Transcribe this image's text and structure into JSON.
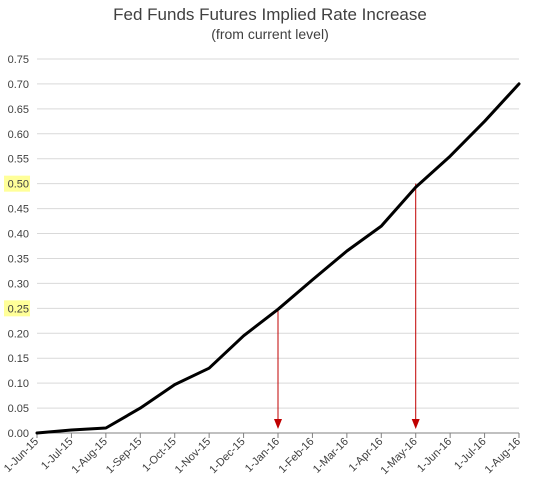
{
  "chart_data": {
    "type": "line",
    "title": "Fed Funds Futures Implied Rate Increase",
    "subtitle": "(from current level)",
    "xlabel": "",
    "ylabel": "",
    "ylim": [
      0,
      0.75
    ],
    "yticks": [
      "0.00",
      "0.05",
      "0.10",
      "0.15",
      "0.20",
      "0.25",
      "0.30",
      "0.35",
      "0.40",
      "0.45",
      "0.50",
      "0.55",
      "0.60",
      "0.65",
      "0.70",
      "0.75"
    ],
    "categories": [
      "1-Jun-15",
      "1-Jul-15",
      "1-Aug-15",
      "1-Sep-15",
      "1-Oct-15",
      "1-Nov-15",
      "1-Dec-15",
      "1-Jan-16",
      "1-Feb-16",
      "1-Mar-16",
      "1-Apr-16",
      "1-May-16",
      "1-Jun-16",
      "1-Jul-16",
      "1-Aug-16"
    ],
    "series": [
      {
        "values": [
          0.0,
          0.006,
          0.01,
          0.05,
          0.097,
          0.13,
          0.195,
          0.248,
          0.307,
          0.365,
          0.415,
          0.493,
          0.555,
          0.625,
          0.7
        ]
      }
    ],
    "grid": true,
    "highlighted_yticks": [
      "0.25",
      "0.50"
    ],
    "annotations": [
      {
        "type": "arrow",
        "x": "1-Jan-16",
        "y_from": 0.25,
        "y_to": 0.0
      },
      {
        "type": "arrow",
        "x": "1-May-16",
        "y_from": 0.5,
        "y_to": 0.0
      }
    ],
    "colors": {
      "line": "#000000",
      "arrow": "#c00000",
      "highlight": "#ffff99",
      "grid": "#d9d9d9",
      "axis": "#808080"
    }
  }
}
